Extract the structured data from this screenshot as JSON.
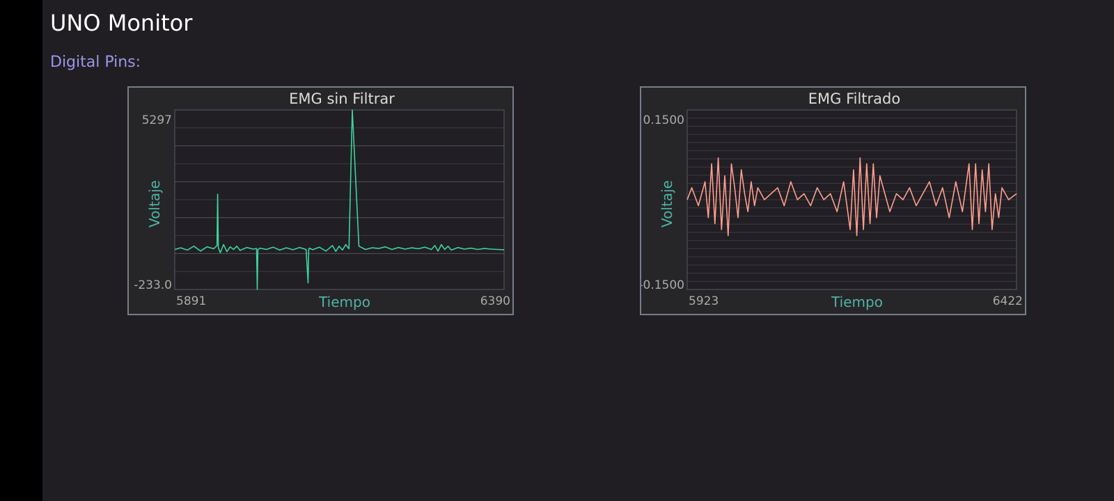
{
  "app": {
    "title": "UNO Monitor",
    "section_label": "Digital Pins:"
  },
  "colors": {
    "background": "#201e22",
    "panel_background": "#262628",
    "panel_border": "#777d8a",
    "axis_label_color": "#4fb3a5",
    "raw_series_color": "#3ed39a",
    "filtered_series_color": "#ff9e8e",
    "section_label_color": "#9c95e8"
  },
  "chart_data": [
    {
      "type": "line",
      "title": "EMG sin Filtrar",
      "xlabel": "Tiempo",
      "ylabel": "Voltaje",
      "x_tick_labels": [
        "5891",
        "6390"
      ],
      "y_tick_labels": [
        "5297",
        "-233.0"
      ],
      "xlim": [
        5891,
        6390
      ],
      "ylim": [
        -233.0,
        5297
      ],
      "grid": true,
      "series": [
        {
          "x": [
            5891,
            5900,
            5910,
            5920,
            5930,
            5940,
            5950,
            5955,
            5956,
            5957,
            5960,
            5965,
            5970,
            5975,
            5980,
            5985,
            5990,
            6000,
            6010,
            6015,
            6016,
            6017,
            6020,
            6030,
            6040,
            6050,
            6060,
            6070,
            6080,
            6090,
            6093,
            6094,
            6095,
            6100,
            6110,
            6120,
            6130,
            6135,
            6140,
            6145,
            6150,
            6155,
            6160,
            6170,
            6180,
            6190,
            6200,
            6210,
            6220,
            6230,
            6240,
            6250,
            6260,
            6270,
            6280,
            6285,
            6290,
            6295,
            6300,
            6305,
            6310,
            6320,
            6330,
            6340,
            6350,
            6360,
            6370,
            6380,
            6390
          ],
          "y": [
            1000,
            1050,
            980,
            1100,
            950,
            1080,
            1020,
            1120,
            2700,
            1050,
            900,
            1150,
            930,
            1080,
            1000,
            1100,
            970,
            1060,
            1010,
            1030,
            -233,
            990,
            1040,
            1000,
            1070,
            980,
            1050,
            990,
            1060,
            1000,
            -30,
            1000,
            1040,
            990,
            1070,
            950,
            1120,
            940,
            1100,
            980,
            1150,
            1020,
            5297,
            1100,
            1000,
            1050,
            1030,
            1080,
            1000,
            1060,
            1010,
            1050,
            1020,
            1070,
            1000,
            1120,
            950,
            1150,
            1000,
            1100,
            980,
            1060,
            1010,
            1040,
            1000,
            1030,
            1010,
            1000,
            990
          ]
        }
      ]
    },
    {
      "type": "line",
      "title": "EMG Filtrado",
      "xlabel": "Tiempo",
      "ylabel": "Voltaje",
      "x_tick_labels": [
        "5923",
        "6422"
      ],
      "y_tick_labels": [
        "0.1500",
        "-0.1500"
      ],
      "xlim": [
        5923,
        6422
      ],
      "ylim": [
        -0.15,
        0.15
      ],
      "grid": true,
      "series": [
        {
          "x": [
            5923,
            5930,
            5940,
            5950,
            5955,
            5960,
            5965,
            5970,
            5975,
            5980,
            5985,
            5990,
            5995,
            6000,
            6005,
            6010,
            6015,
            6020,
            6025,
            6030,
            6040,
            6050,
            6060,
            6070,
            6080,
            6090,
            6100,
            6110,
            6120,
            6130,
            6140,
            6150,
            6160,
            6170,
            6175,
            6180,
            6185,
            6190,
            6195,
            6200,
            6205,
            6210,
            6215,
            6220,
            6230,
            6240,
            6250,
            6260,
            6270,
            6280,
            6290,
            6300,
            6310,
            6320,
            6330,
            6340,
            6350,
            6355,
            6360,
            6365,
            6370,
            6375,
            6380,
            6385,
            6390,
            6395,
            6400,
            6410,
            6422
          ],
          "y": [
            0.0,
            0.02,
            -0.01,
            0.03,
            -0.03,
            0.06,
            -0.04,
            0.07,
            -0.05,
            0.04,
            -0.06,
            0.06,
            0.02,
            -0.03,
            0.05,
            0.01,
            -0.02,
            0.03,
            -0.01,
            0.02,
            0.0,
            0.01,
            0.02,
            -0.01,
            0.03,
            0.0,
            0.01,
            -0.01,
            0.02,
            0.0,
            0.01,
            -0.02,
            0.03,
            -0.05,
            0.05,
            -0.06,
            0.07,
            -0.05,
            0.06,
            -0.04,
            0.06,
            -0.03,
            0.04,
            0.02,
            -0.02,
            0.01,
            0.0,
            0.02,
            -0.01,
            0.01,
            0.03,
            -0.01,
            0.02,
            -0.03,
            0.03,
            -0.02,
            0.06,
            -0.05,
            0.06,
            -0.04,
            0.05,
            -0.02,
            0.06,
            -0.05,
            0.01,
            -0.03,
            0.02,
            0.0,
            0.01
          ]
        }
      ]
    }
  ]
}
